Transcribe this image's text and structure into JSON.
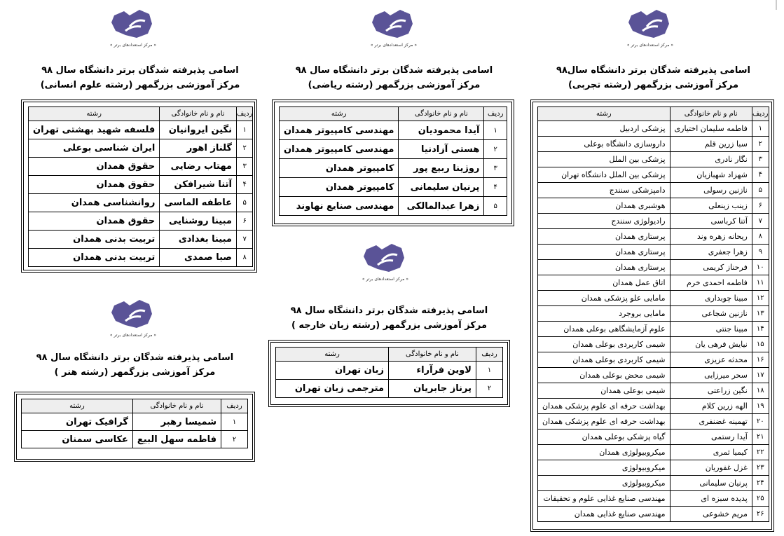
{
  "brand": {
    "logo_text": "بزرگمهر",
    "tagline": "« مرکز استعدادهای برتر »",
    "logo_color": "#5a5397"
  },
  "headers": {
    "radif": "ردیف",
    "name": "نام و نام خانوادگی",
    "field": "رشته"
  },
  "sections": {
    "humanities": {
      "title1": "اسامی پذیرفته شدگان  برتر  دانشگاه سال ۹۸",
      "title2": "مرکز آموزشی بزرگمهر (رشته علوم انسانی)",
      "rows": [
        [
          "۱",
          "نگین ایروانیان",
          "فلسفه شهید بهشتی تهران"
        ],
        [
          "۲",
          "گلناز اهور",
          "ایران شناسی بوعلی"
        ],
        [
          "۳",
          "مهتاب رضایی",
          "حقوق همدان"
        ],
        [
          "۴",
          "آتنا شیرافکن",
          "حقوق همدان"
        ],
        [
          "۵",
          "عاطفه الماسی",
          "روانشناسی همدان"
        ],
        [
          "۶",
          "مبینا روشنایی",
          "حقوق همدان"
        ],
        [
          "۷",
          "مبینا بغدادی",
          "تربیت بدنی همدان"
        ],
        [
          "۸",
          "صبا صمدی",
          "تربیت بدنی همدان"
        ]
      ]
    },
    "math": {
      "title1": "اسامی پذیرفته شدگان  برتر  دانشگاه سال  ۹۸",
      "title2": "مرکز آموزشی بزرگمهر (رشته ریاضی)",
      "rows": [
        [
          "۱",
          "آیدا محمودیان",
          "مهندسی کامپیوتر همدان"
        ],
        [
          "۲",
          "هستی آزادنیا",
          "مهندسی کامپیوتر همدان"
        ],
        [
          "۳",
          "روژینا ربیع پور",
          "کامپیوتر همدان"
        ],
        [
          "۴",
          "پرنیان سلیمانی",
          "کامپیوتر همدان"
        ],
        [
          "۵",
          "زهرا عبدالمالکی",
          "مهندسی صنایع نهاوند"
        ]
      ]
    },
    "experimental": {
      "title1": "اسامی پذیرفته شدگان  برتر  دانشگاه سال۹۸",
      "title2": "مرکز آموزشی بزرگمهر (رشته تجربی)",
      "rows": [
        [
          "۱",
          "فاطمه سلیمان اختیاری",
          "پزشکی اردبیل"
        ],
        [
          "۲",
          "سبا زرین قلم",
          "داروسازی دانشگاه بوعلی"
        ],
        [
          "۳",
          "نگار نادری",
          "پزشکی بین الملل"
        ],
        [
          "۴",
          "شهزاد شهبازیان",
          "پزشکی بین الملل دانشگاه تهران"
        ],
        [
          "۵",
          "نازنین رسولی",
          "دامپزشکی سنندج"
        ],
        [
          "۶",
          "زینب زینعلی",
          "هوشبری همدان"
        ],
        [
          "۷",
          "آتنا کرباسی",
          "رادیولوژی سنندج"
        ],
        [
          "۸",
          "ریحانه زهره وند",
          "پرستاری همدان"
        ],
        [
          "۹",
          "زهرا جعفری",
          "پرستاری همدان"
        ],
        [
          "۱۰",
          "فرحناز کریمی",
          "پرستاری همدان"
        ],
        [
          "۱۱",
          "فاطمه احمدی خرم",
          "اتاق عمل همدان"
        ],
        [
          "۱۲",
          "مبینا چوبداری",
          "مامایی علو پزشکی همدان"
        ],
        [
          "۱۳",
          "نازنین شجاعی",
          "مامایی بروجرد"
        ],
        [
          "۱۴",
          "مبینا جنتی",
          "علوم آزمایشگاهی بوعلی همدان"
        ],
        [
          "۱۵",
          "نیایش فرهی یان",
          "شیمی کاربردی بوعلی همدان"
        ],
        [
          "۱۶",
          "محدثه عزیزی",
          "شیمی کاربردی بوعلی همدان"
        ],
        [
          "۱۷",
          "سحر میرزایی",
          "شیمی محض بوعلی همدان"
        ],
        [
          "۱۸",
          "نگین زراعتی",
          "شیمی بوعلی همدان"
        ],
        [
          "۱۹",
          "الهه زرین کلام",
          "بهداشت حرفه ای علوم پزشکی همدان"
        ],
        [
          "۲۰",
          "تهمینه غضنفری",
          "بهداشت حرفه ای علوم پزشکی همدان"
        ],
        [
          "۲۱",
          "آیدا رستمی",
          "گیاه پزشکی بوعلی همدان"
        ],
        [
          "۲۲",
          "کیمیا ثمری",
          "میکروبیولوژی همدان"
        ],
        [
          "۲۳",
          "غزل غفوریان",
          "میکروبیولوژی"
        ],
        [
          "۲۴",
          "پرنیان سلیمانی",
          "میکروبیولوژی"
        ],
        [
          "۲۵",
          "پدیده سبزه ای",
          "مهندسی صنایع غذایی علوم و تحقیقات"
        ],
        [
          "۲۶",
          "مریم خشوعی",
          "مهندسی صنایع غذایی همدان"
        ]
      ]
    },
    "language": {
      "title1": "اسامی پذیرفته شدگان  برتر  دانشگاه سال ۹۸",
      "title2": "مرکز آموزشی بزرگمهر (رشته زبان خارجه )",
      "rows": [
        [
          "۱",
          "لاوین فرآراء",
          "زبان تهران"
        ],
        [
          "۲",
          "پرناز جابریان",
          "مترجمی زبان تهران"
        ]
      ]
    },
    "art": {
      "title1": "اسامی پذیرفته شدگان  برتر  دانشگاه سال ۹۸",
      "title2": "مرکز آموزشی بزرگمهر (رشته هنر )",
      "rows": [
        [
          "۱",
          "شمیسا رهبر",
          "گرافیک تهران"
        ],
        [
          "۲",
          "فاطمه سهل البیع",
          "عکاسی سمنان"
        ]
      ]
    }
  }
}
